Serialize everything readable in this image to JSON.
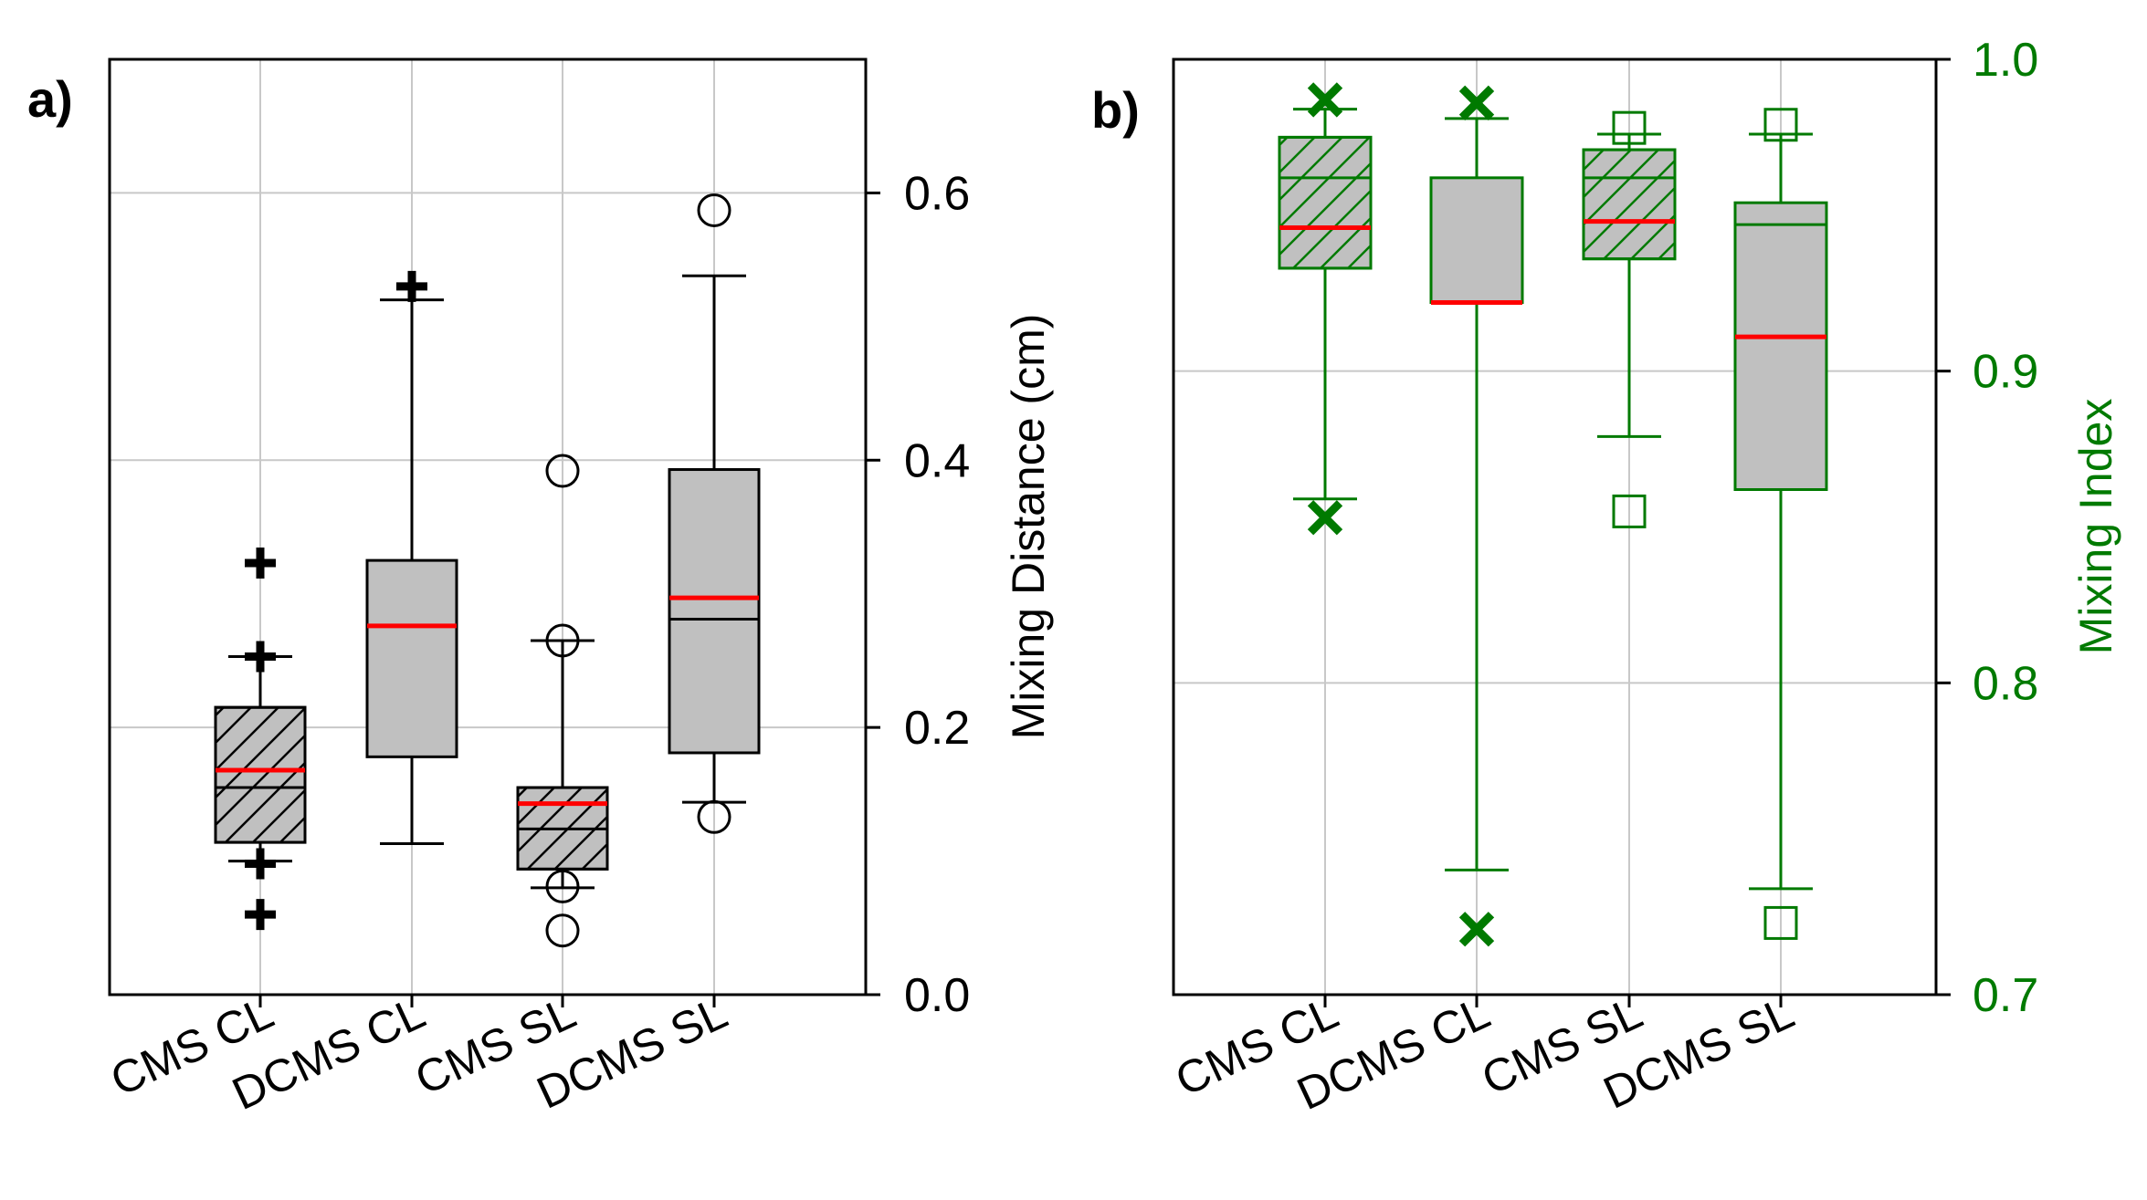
{
  "colors": {
    "axis_black": "#000000",
    "axis_green": "#007a00",
    "box_fill": "#c0c0c0",
    "median": "#ff0000",
    "grid": "#c8c8c8"
  },
  "chart_data": [
    {
      "type": "box",
      "panel_label": "a)",
      "categories": [
        "CMS CL",
        "DCMS CL",
        "CMS SL",
        "DCMS SL"
      ],
      "ylabel": "Mixing Distance (cm)",
      "y_axis_side": "right",
      "ylim": [
        0,
        0.7
      ],
      "yticks": [
        0.0,
        0.2,
        0.4,
        0.6
      ],
      "ytick_labels": [
        "0.0",
        "0.2",
        "0.4",
        "0.6"
      ],
      "grid": true,
      "color": "black",
      "boxes": [
        {
          "category": "CMS CL",
          "whisker_low": 0.1,
          "q1": 0.114,
          "mean": 0.155,
          "median": 0.168,
          "q3": 0.215,
          "whisker_high": 0.253,
          "outliers": [
            0.06,
            0.098,
            0.253,
            0.323
          ],
          "outlier_marker": "plus",
          "hatched": true
        },
        {
          "category": "DCMS CL",
          "whisker_low": 0.113,
          "q1": 0.178,
          "median": 0.276,
          "q3": 0.325,
          "whisker_high": 0.52,
          "outliers": [
            0.53
          ],
          "outlier_marker": "plus",
          "hatched": false
        },
        {
          "category": "CMS SL",
          "whisker_low": 0.08,
          "q1": 0.094,
          "mean": 0.124,
          "median": 0.143,
          "q3": 0.155,
          "whisker_high": 0.265,
          "outliers": [
            0.048,
            0.081,
            0.265,
            0.392
          ],
          "outlier_marker": "circle",
          "hatched": true
        },
        {
          "category": "DCMS SL",
          "whisker_low": 0.144,
          "q1": 0.181,
          "mean": 0.281,
          "median": 0.297,
          "q3": 0.393,
          "whisker_high": 0.538,
          "outliers": [
            0.133,
            0.587
          ],
          "outlier_marker": "circle",
          "hatched": false
        }
      ]
    },
    {
      "type": "box",
      "panel_label": "b)",
      "categories": [
        "CMS CL",
        "DCMS CL",
        "CMS SL",
        "DCMS SL"
      ],
      "ylabel": "Mixing Index",
      "y_axis_side": "right",
      "ylim": [
        0.7,
        1.0
      ],
      "yticks": [
        0.7,
        0.8,
        0.9,
        1.0
      ],
      "ytick_labels": [
        "0.7",
        "0.8",
        "0.9",
        "1.0"
      ],
      "grid": true,
      "color": "green",
      "boxes": [
        {
          "category": "CMS CL",
          "whisker_low": 0.859,
          "q1": 0.933,
          "mean": 0.962,
          "median": 0.946,
          "q3": 0.975,
          "whisker_high": 0.984,
          "outliers": [
            0.853,
            0.987
          ],
          "outlier_marker": "x",
          "hatched": true
        },
        {
          "category": "DCMS CL",
          "whisker_low": 0.74,
          "q1": 0.922,
          "median": 0.922,
          "q3": 0.962,
          "whisker_high": 0.981,
          "outliers": [
            0.721,
            0.986
          ],
          "outlier_marker": "x",
          "hatched": false
        },
        {
          "category": "CMS SL",
          "whisker_low": 0.879,
          "q1": 0.936,
          "mean": 0.962,
          "median": 0.948,
          "q3": 0.971,
          "whisker_high": 0.976,
          "outliers": [
            0.855,
            0.978
          ],
          "outlier_marker": "square",
          "hatched": true
        },
        {
          "category": "DCMS SL",
          "whisker_low": 0.734,
          "q1": 0.862,
          "mean": 0.947,
          "median": 0.911,
          "q3": 0.954,
          "whisker_high": 0.976,
          "outliers": [
            0.723,
            0.979
          ],
          "outlier_marker": "square",
          "hatched": false
        }
      ]
    }
  ]
}
